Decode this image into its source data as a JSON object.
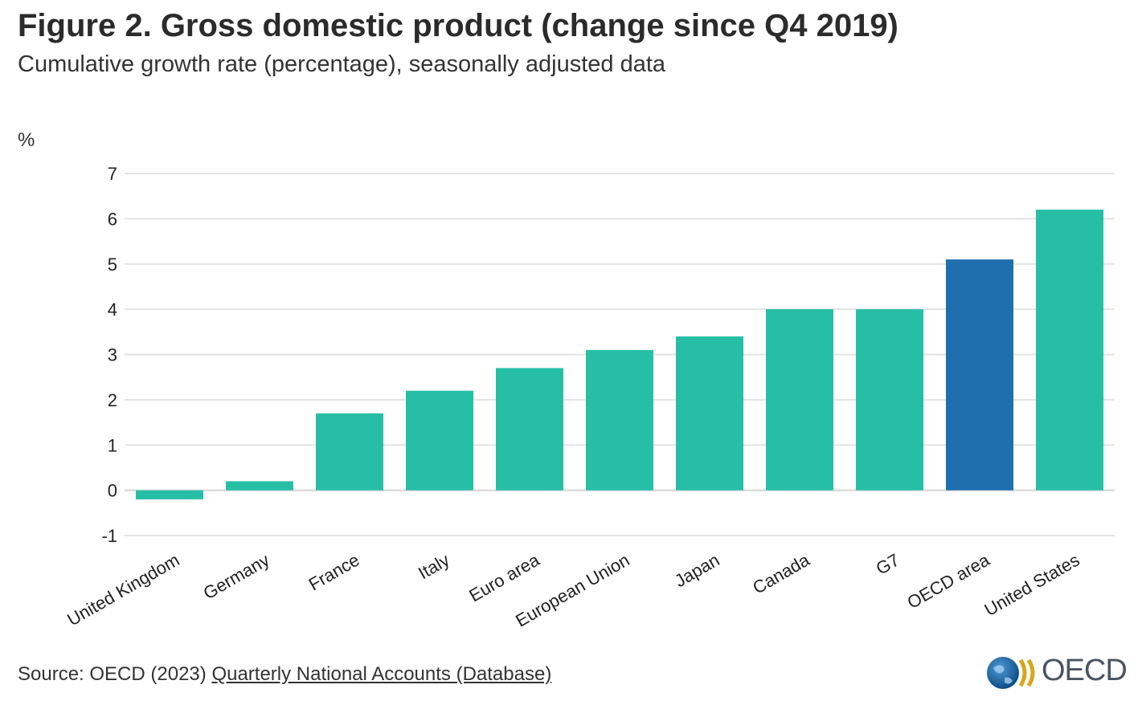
{
  "title": "Figure 2. Gross domestic product (change since Q4 2019)",
  "subtitle": "Cumulative growth rate (percentage), seasonally adjusted data",
  "source": {
    "prefix": "Source: OECD (2023) ",
    "link_text": "Quarterly National Accounts (Database)"
  },
  "logo": {
    "text": "OECD"
  },
  "colors": {
    "bar": "#26bfa6",
    "highlight": "#1f6fae",
    "grid": "#e3e3e3",
    "text": "#222222"
  },
  "chart_data": {
    "type": "bar",
    "ylabel": "%",
    "ylim": [
      -1,
      7
    ],
    "yticks": [
      -1,
      0,
      1,
      2,
      3,
      4,
      5,
      6,
      7
    ],
    "categories": [
      "United Kingdom",
      "Germany",
      "France",
      "Italy",
      "Euro area",
      "European Union",
      "Japan",
      "Canada",
      "G7",
      "OECD area",
      "United States"
    ],
    "values": [
      -0.2,
      0.2,
      1.7,
      2.2,
      2.7,
      3.1,
      3.4,
      4.0,
      4.0,
      5.1,
      6.2
    ],
    "highlight": [
      "OECD area"
    ]
  }
}
